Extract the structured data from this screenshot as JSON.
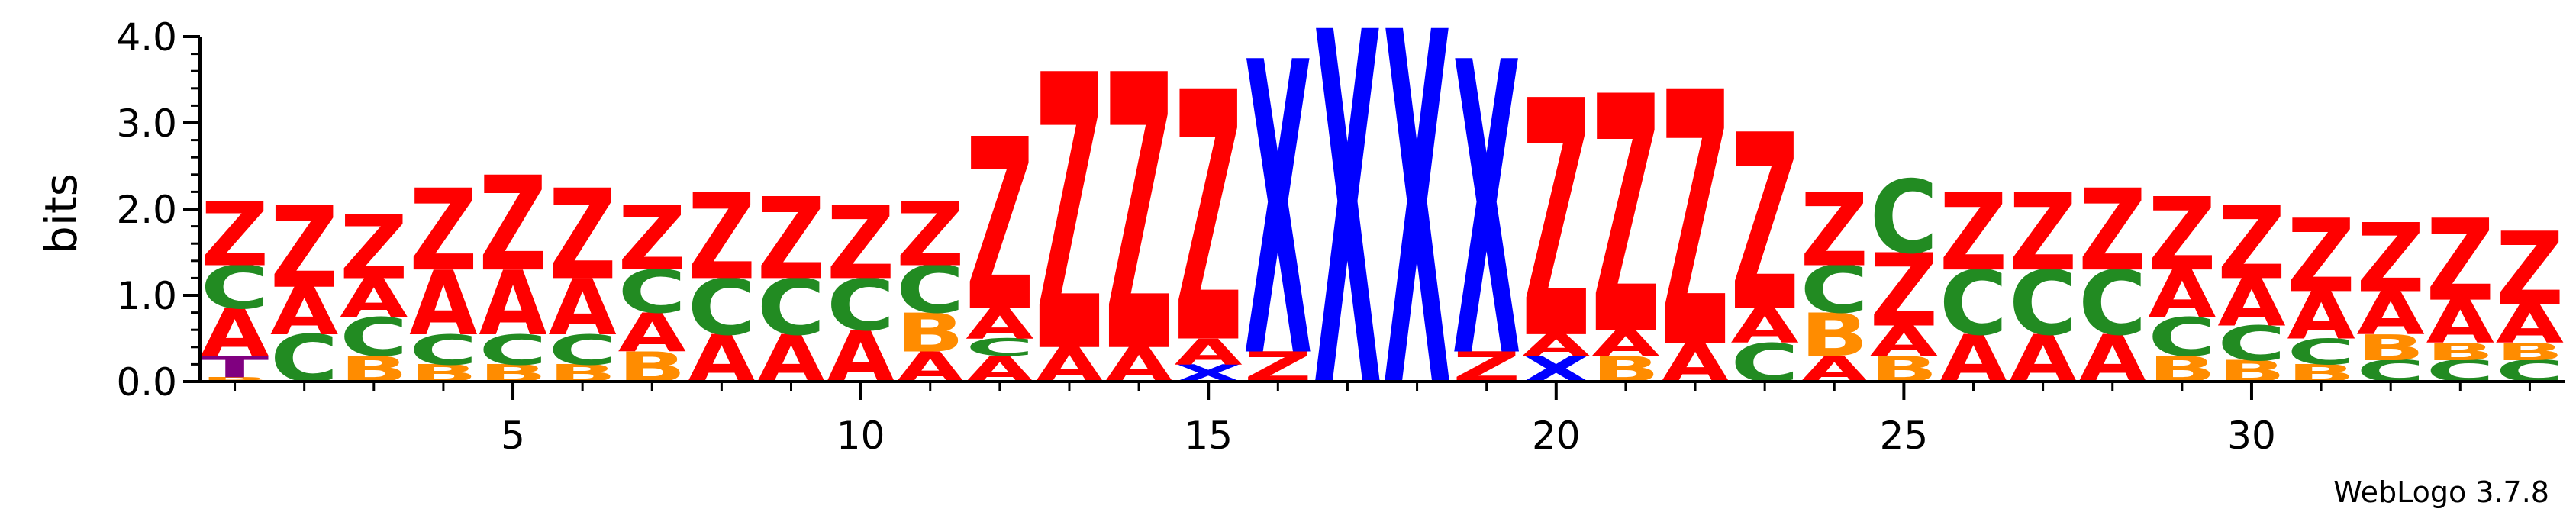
{
  "chart_data": {
    "type": "sequence-logo",
    "ylabel": "bits",
    "ylim": [
      0,
      4.0
    ],
    "yticks": [
      "0.0",
      "1.0",
      "2.0",
      "3.0",
      "4.0"
    ],
    "xticks": [
      {
        "label": "5",
        "pos": 5
      },
      {
        "label": "10",
        "pos": 10
      },
      {
        "label": "15",
        "pos": 15
      },
      {
        "label": "20",
        "pos": 20
      },
      {
        "label": "25",
        "pos": 25
      },
      {
        "label": "30",
        "pos": 30
      }
    ],
    "credit": "WebLogo 3.7.8",
    "colors": {
      "Z": "#ff0000",
      "X": "#0000ff",
      "A": "#ff0000",
      "C": "#228b22",
      "B": "#ff8c00",
      "T": "#800080"
    },
    "positions": [
      {
        "pos": 1,
        "stack": [
          [
            "B",
            0.05
          ],
          [
            "T",
            0.25
          ],
          [
            "A",
            0.55
          ],
          [
            "C",
            0.5
          ],
          [
            "Z",
            0.75
          ]
        ]
      },
      {
        "pos": 2,
        "stack": [
          [
            "C",
            0.55
          ],
          [
            "A",
            0.55
          ],
          [
            "Z",
            0.95
          ]
        ]
      },
      {
        "pos": 3,
        "stack": [
          [
            "B",
            0.3
          ],
          [
            "C",
            0.45
          ],
          [
            "A",
            0.45
          ],
          [
            "Z",
            0.75
          ]
        ]
      },
      {
        "pos": 4,
        "stack": [
          [
            "B",
            0.2
          ],
          [
            "C",
            0.35
          ],
          [
            "A",
            0.75
          ],
          [
            "Z",
            0.95
          ]
        ]
      },
      {
        "pos": 5,
        "stack": [
          [
            "B",
            0.2
          ],
          [
            "C",
            0.35
          ],
          [
            "A",
            0.75
          ],
          [
            "Z",
            1.1
          ]
        ]
      },
      {
        "pos": 6,
        "stack": [
          [
            "B",
            0.2
          ],
          [
            "C",
            0.35
          ],
          [
            "A",
            0.65
          ],
          [
            "Z",
            1.05
          ]
        ]
      },
      {
        "pos": 7,
        "stack": [
          [
            "B",
            0.35
          ],
          [
            "A",
            0.45
          ],
          [
            "C",
            0.5
          ],
          [
            "Z",
            0.75
          ]
        ]
      },
      {
        "pos": 8,
        "stack": [
          [
            "A",
            0.55
          ],
          [
            "C",
            0.65
          ],
          [
            "Z",
            1.0
          ]
        ]
      },
      {
        "pos": 9,
        "stack": [
          [
            "A",
            0.55
          ],
          [
            "C",
            0.65
          ],
          [
            "Z",
            0.95
          ]
        ]
      },
      {
        "pos": 10,
        "stack": [
          [
            "A",
            0.6
          ],
          [
            "C",
            0.6
          ],
          [
            "Z",
            0.85
          ]
        ]
      },
      {
        "pos": 11,
        "stack": [
          [
            "A",
            0.35
          ],
          [
            "B",
            0.45
          ],
          [
            "C",
            0.55
          ],
          [
            "Z",
            0.75
          ]
        ]
      },
      {
        "pos": 12,
        "stack": [
          [
            "A",
            0.3
          ],
          [
            "C",
            0.2
          ],
          [
            "A",
            0.35
          ],
          [
            "Z",
            2.0
          ]
        ]
      },
      {
        "pos": 13,
        "stack": [
          [
            "A",
            0.4
          ],
          [
            "Z",
            3.2
          ]
        ]
      },
      {
        "pos": 14,
        "stack": [
          [
            "A",
            0.4
          ],
          [
            "Z",
            3.2
          ]
        ]
      },
      {
        "pos": 15,
        "stack": [
          [
            "X",
            0.2
          ],
          [
            "A",
            0.3
          ],
          [
            "Z",
            2.9
          ]
        ]
      },
      {
        "pos": 16,
        "stack": [
          [
            "Z",
            0.35
          ],
          [
            "X",
            3.4
          ]
        ]
      },
      {
        "pos": 17,
        "stack": [
          [
            "X",
            4.1
          ]
        ]
      },
      {
        "pos": 18,
        "stack": [
          [
            "X",
            4.1
          ]
        ]
      },
      {
        "pos": 19,
        "stack": [
          [
            "Z",
            0.35
          ],
          [
            "X",
            3.4
          ]
        ]
      },
      {
        "pos": 20,
        "stack": [
          [
            "X",
            0.3
          ],
          [
            "A",
            0.25
          ],
          [
            "Z",
            2.75
          ]
        ]
      },
      {
        "pos": 21,
        "stack": [
          [
            "B",
            0.3
          ],
          [
            "A",
            0.3
          ],
          [
            "Z",
            2.75
          ]
        ]
      },
      {
        "pos": 22,
        "stack": [
          [
            "A",
            0.45
          ],
          [
            "Z",
            2.95
          ]
        ]
      },
      {
        "pos": 23,
        "stack": [
          [
            "C",
            0.45
          ],
          [
            "A",
            0.4
          ],
          [
            "Z",
            2.05
          ]
        ]
      },
      {
        "pos": 24,
        "stack": [
          [
            "A",
            0.3
          ],
          [
            "B",
            0.5
          ],
          [
            "C",
            0.55
          ],
          [
            "Z",
            0.85
          ]
        ]
      },
      {
        "pos": 25,
        "stack": [
          [
            "B",
            0.3
          ],
          [
            "A",
            0.35
          ],
          [
            "Z",
            0.85
          ],
          [
            "C",
            0.85
          ]
        ]
      },
      {
        "pos": 26,
        "stack": [
          [
            "A",
            0.55
          ],
          [
            "C",
            0.75
          ],
          [
            "Z",
            0.9
          ]
        ]
      },
      {
        "pos": 27,
        "stack": [
          [
            "A",
            0.55
          ],
          [
            "C",
            0.75
          ],
          [
            "Z",
            0.9
          ]
        ]
      },
      {
        "pos": 28,
        "stack": [
          [
            "A",
            0.55
          ],
          [
            "C",
            0.75
          ],
          [
            "Z",
            0.95
          ]
        ]
      },
      {
        "pos": 29,
        "stack": [
          [
            "B",
            0.3
          ],
          [
            "C",
            0.45
          ],
          [
            "A",
            0.55
          ],
          [
            "Z",
            0.85
          ]
        ]
      },
      {
        "pos": 30,
        "stack": [
          [
            "B",
            0.25
          ],
          [
            "C",
            0.4
          ],
          [
            "A",
            0.55
          ],
          [
            "Z",
            0.85
          ]
        ]
      },
      {
        "pos": 31,
        "stack": [
          [
            "B",
            0.2
          ],
          [
            "C",
            0.3
          ],
          [
            "A",
            0.55
          ],
          [
            "Z",
            0.85
          ]
        ]
      },
      {
        "pos": 32,
        "stack": [
          [
            "C",
            0.25
          ],
          [
            "B",
            0.3
          ],
          [
            "A",
            0.5
          ],
          [
            "Z",
            0.8
          ]
        ]
      },
      {
        "pos": 33,
        "stack": [
          [
            "C",
            0.25
          ],
          [
            "B",
            0.2
          ],
          [
            "A",
            0.5
          ],
          [
            "Z",
            0.95
          ]
        ]
      },
      {
        "pos": 34,
        "stack": [
          [
            "C",
            0.25
          ],
          [
            "B",
            0.2
          ],
          [
            "A",
            0.45
          ],
          [
            "Z",
            0.85
          ]
        ]
      }
    ]
  }
}
